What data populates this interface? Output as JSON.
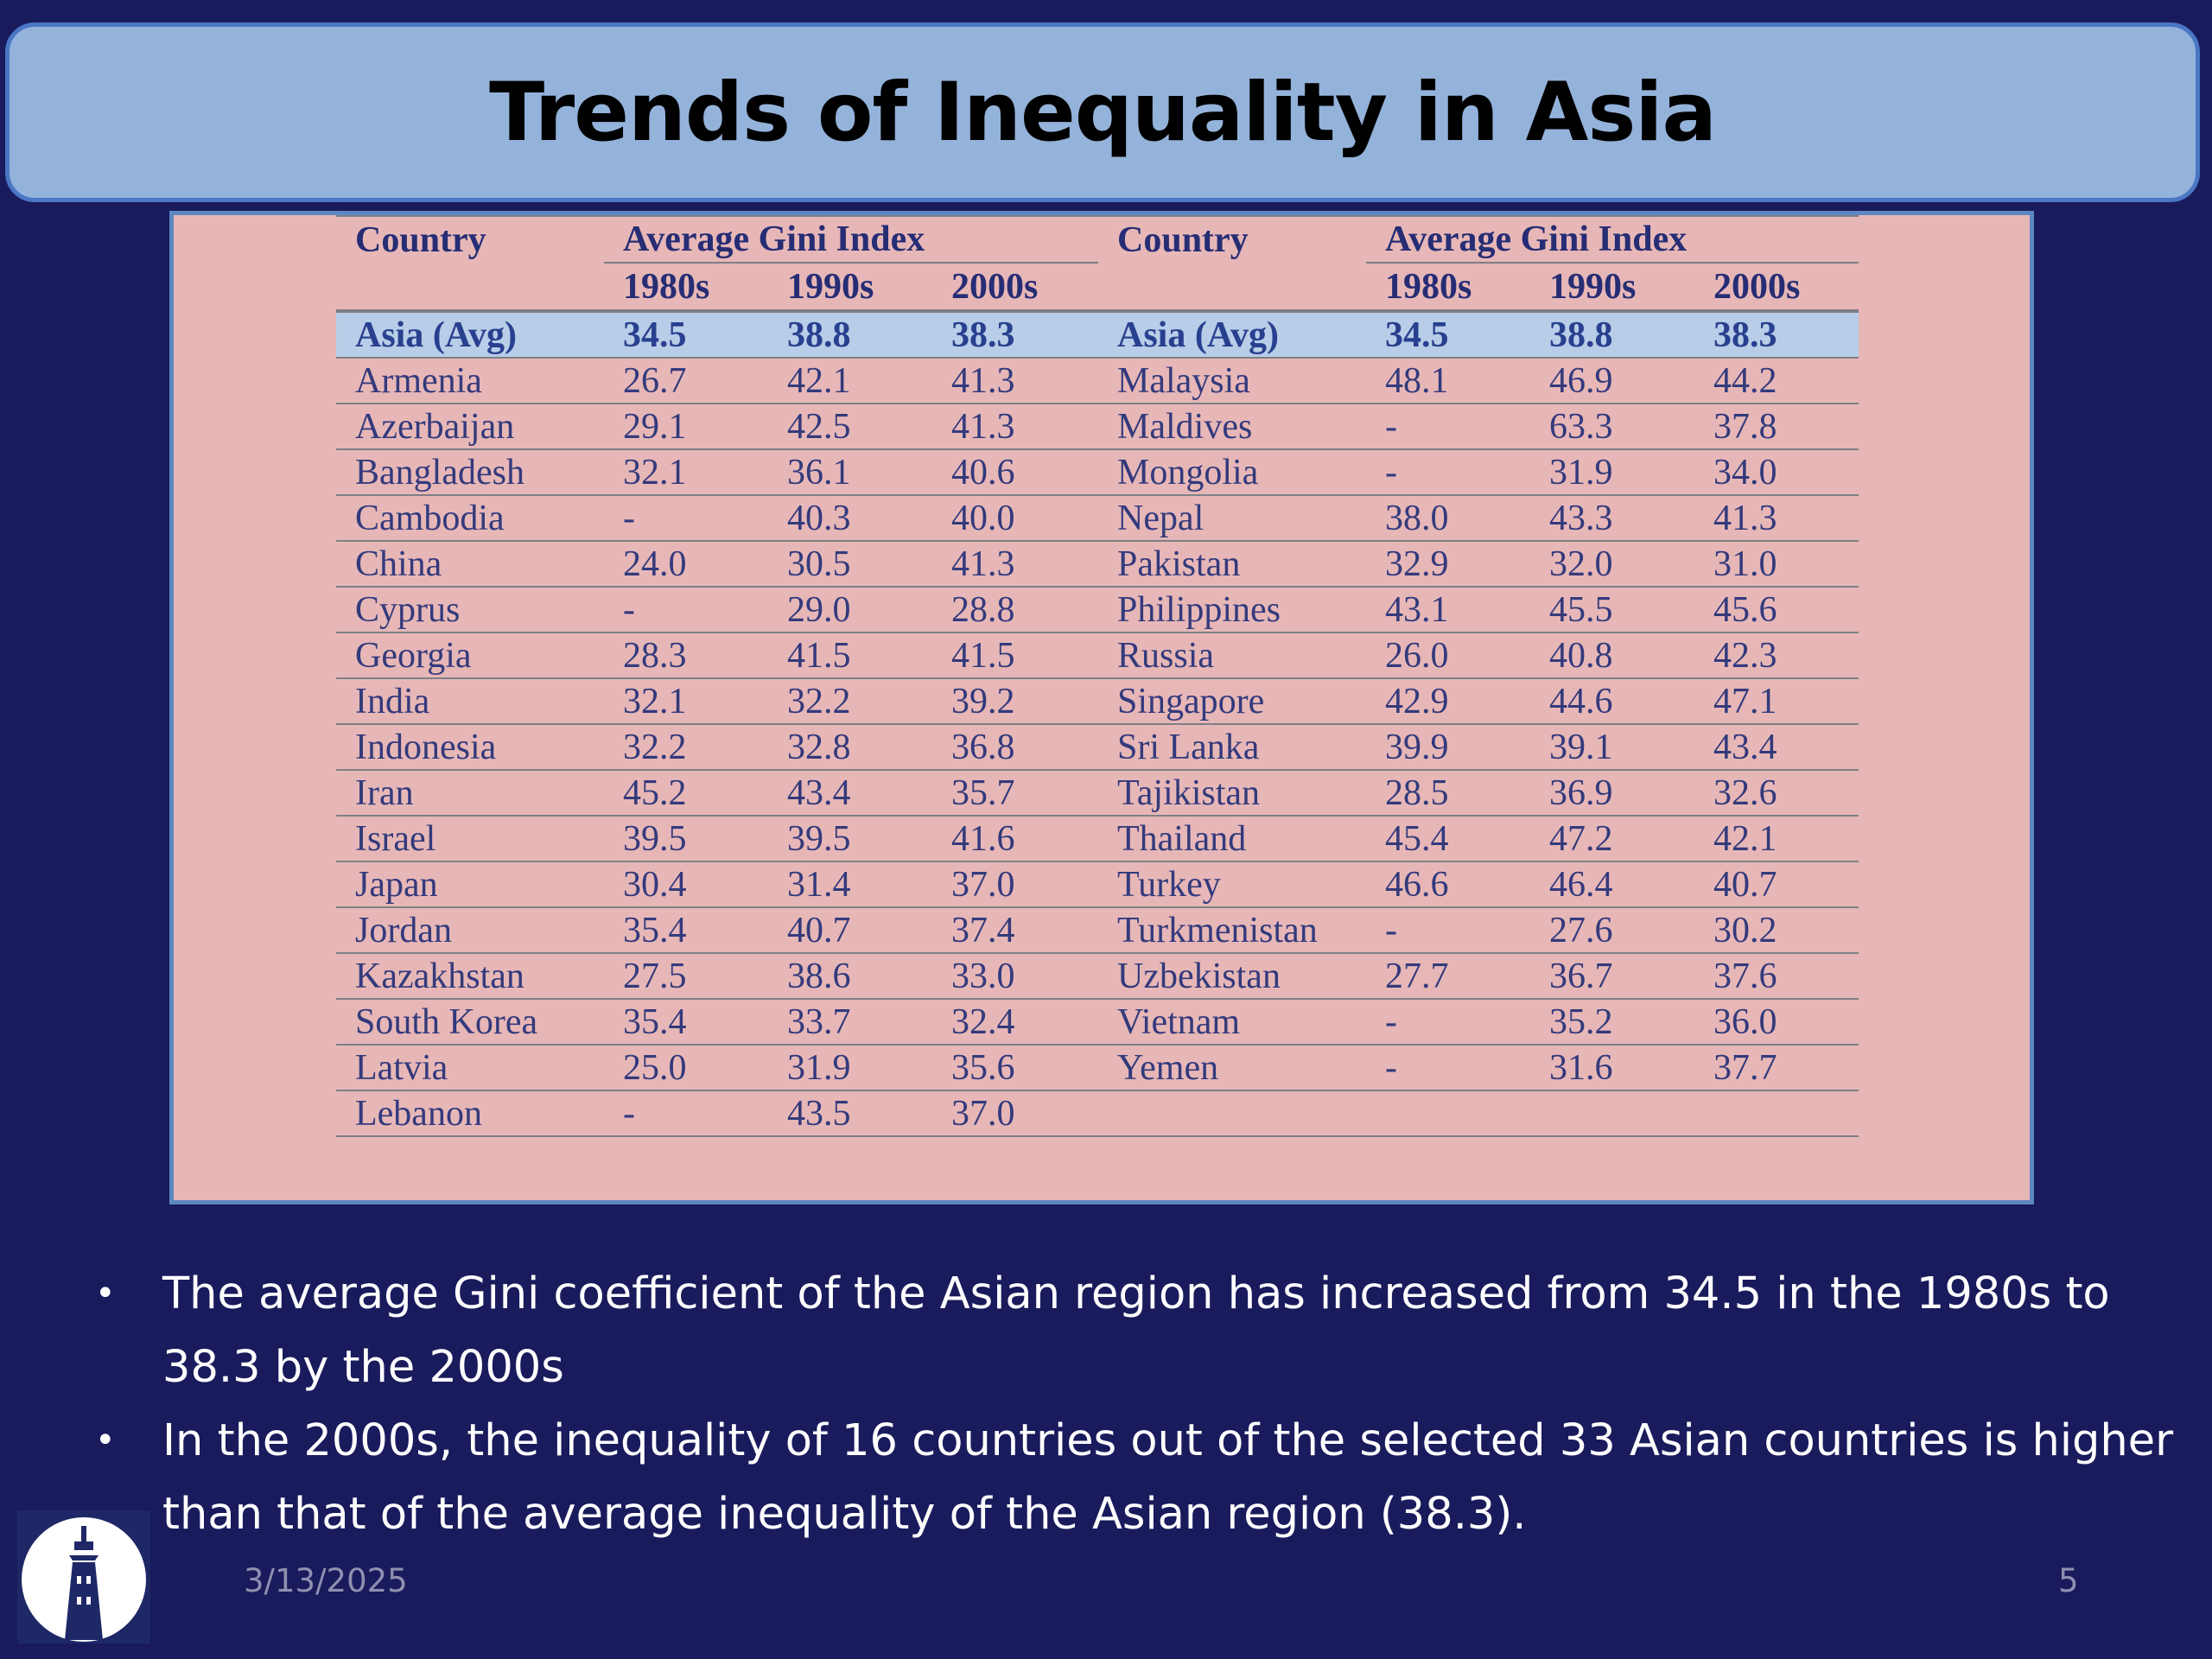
{
  "slide": {
    "title": "Trends of Inequality in Asia",
    "date": "3/13/2025",
    "page_number": "5"
  },
  "table": {
    "header": {
      "country": "Country",
      "group": "Average Gini Index",
      "decades": [
        "1980s",
        "1990s",
        "2000s"
      ]
    },
    "avg_row": {
      "left": [
        "Asia (Avg)",
        "34.5",
        "38.8",
        "38.3"
      ],
      "right": [
        "Asia (Avg)",
        "34.5",
        "38.8",
        "38.3"
      ]
    },
    "rows": [
      {
        "left": [
          "Armenia",
          "26.7",
          "42.1",
          "41.3"
        ],
        "right": [
          "Malaysia",
          "48.1",
          "46.9",
          "44.2"
        ]
      },
      {
        "left": [
          "Azerbaijan",
          "29.1",
          "42.5",
          "41.3"
        ],
        "right": [
          "Maldives",
          "-",
          "63.3",
          "37.8"
        ]
      },
      {
        "left": [
          "Bangladesh",
          "32.1",
          "36.1",
          "40.6"
        ],
        "right": [
          "Mongolia",
          "-",
          "31.9",
          "34.0"
        ]
      },
      {
        "left": [
          "Cambodia",
          "-",
          "40.3",
          "40.0"
        ],
        "right": [
          "Nepal",
          "38.0",
          "43.3",
          "41.3"
        ]
      },
      {
        "left": [
          "China",
          "24.0",
          "30.5",
          "41.3"
        ],
        "right": [
          "Pakistan",
          "32.9",
          "32.0",
          "31.0"
        ]
      },
      {
        "left": [
          "Cyprus",
          "-",
          "29.0",
          "28.8"
        ],
        "right": [
          "Philippines",
          "43.1",
          "45.5",
          "45.6"
        ]
      },
      {
        "left": [
          "Georgia",
          "28.3",
          "41.5",
          "41.5"
        ],
        "right": [
          "Russia",
          "26.0",
          "40.8",
          "42.3"
        ]
      },
      {
        "left": [
          "India",
          "32.1",
          "32.2",
          "39.2"
        ],
        "right": [
          "Singapore",
          "42.9",
          "44.6",
          "47.1"
        ]
      },
      {
        "left": [
          "Indonesia",
          "32.2",
          "32.8",
          "36.8"
        ],
        "right": [
          "Sri Lanka",
          "39.9",
          "39.1",
          "43.4"
        ]
      },
      {
        "left": [
          "Iran",
          "45.2",
          "43.4",
          "35.7"
        ],
        "right": [
          "Tajikistan",
          "28.5",
          "36.9",
          "32.6"
        ]
      },
      {
        "left": [
          "Israel",
          "39.5",
          "39.5",
          "41.6"
        ],
        "right": [
          "Thailand",
          "45.4",
          "47.2",
          "42.1"
        ]
      },
      {
        "left": [
          "Japan",
          "30.4",
          "31.4",
          "37.0"
        ],
        "right": [
          "Turkey",
          "46.6",
          "46.4",
          "40.7"
        ]
      },
      {
        "left": [
          "Jordan",
          "35.4",
          "40.7",
          "37.4"
        ],
        "right": [
          "Turkmenistan",
          "-",
          "27.6",
          "30.2"
        ]
      },
      {
        "left": [
          "Kazakhstan",
          "27.5",
          "38.6",
          "33.0"
        ],
        "right": [
          "Uzbekistan",
          "27.7",
          "36.7",
          "37.6"
        ]
      },
      {
        "left": [
          "South Korea",
          "35.4",
          "33.7",
          "32.4"
        ],
        "right": [
          "Vietnam",
          "-",
          "35.2",
          "36.0"
        ]
      },
      {
        "left": [
          "Latvia",
          "25.0",
          "31.9",
          "35.6"
        ],
        "right": [
          "Yemen",
          "-",
          "31.6",
          "37.7"
        ]
      },
      {
        "left": [
          "Lebanon",
          "-",
          "43.5",
          "37.0"
        ],
        "right": [
          "",
          "",
          "",
          ""
        ]
      }
    ]
  },
  "bullets": [
    "The average Gini coefficient of the Asian region has increased from 34.5 in the 1980s to 38.3 by the 2000s",
    "In the 2000s, the inequality of 16 countries out of the selected 33 Asian countries is higher than that of the average inequality of the Asian region (38.3)."
  ],
  "bullet_symbol": "•",
  "colors": {
    "background": "#191b5c",
    "title_fill": "#94b3db",
    "title_border": "#4a76c4",
    "table_panel": "#e7b7b7",
    "highlight_row": "#b8cde7",
    "table_text": "#333a7c"
  },
  "icons": [
    "lighthouse-logo-icon"
  ]
}
